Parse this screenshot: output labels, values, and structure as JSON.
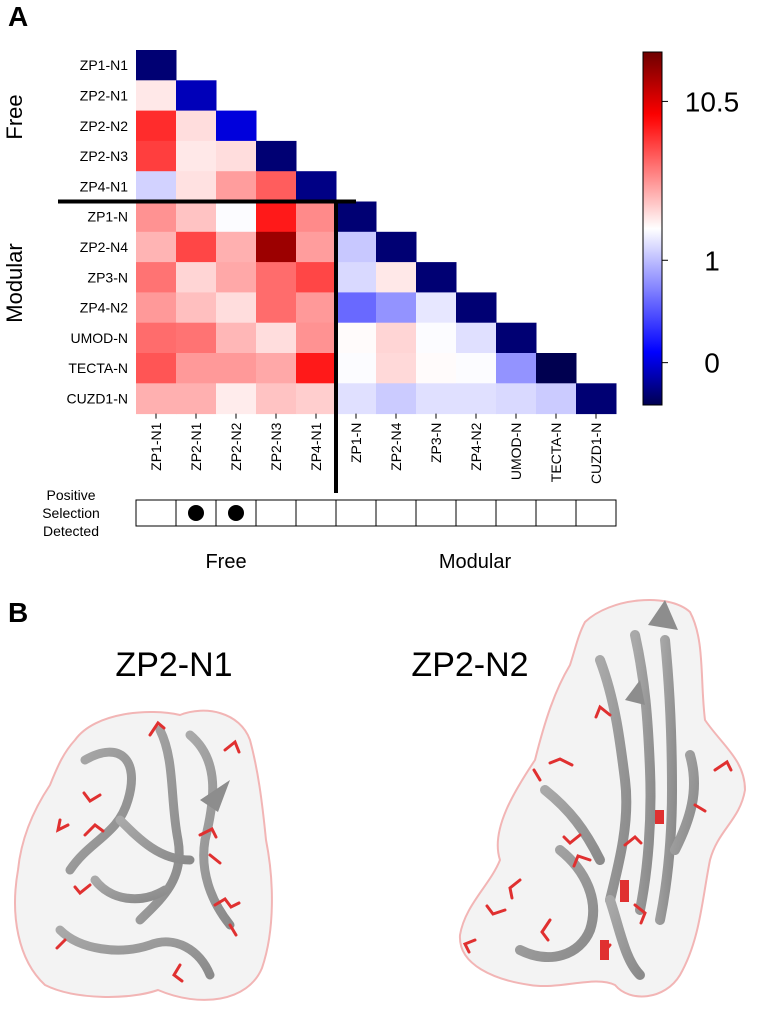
{
  "panels": {
    "a_label": "A",
    "b_label": "B"
  },
  "chart_data": {
    "type": "heatmap",
    "lower_triangle": true,
    "rows": [
      "ZP1-N1",
      "ZP2-N1",
      "ZP2-N2",
      "ZP2-N3",
      "ZP4-N1",
      "ZP1-N",
      "ZP2-N4",
      "ZP3-N",
      "ZP4-N2",
      "UMOD-N",
      "TECTA-N",
      "CUZD1-N"
    ],
    "columns": [
      "ZP1-N1",
      "ZP2-N1",
      "ZP2-N2",
      "ZP2-N3",
      "ZP4-N1",
      "ZP1-N",
      "ZP2-N4",
      "ZP3-N",
      "ZP4-N2",
      "UMOD-N",
      "TECTA-N",
      "CUZD1-N"
    ],
    "values": [
      [
        -0.6
      ],
      [
        3.5,
        -0.2
      ],
      [
        8.5,
        3.8,
        0.0
      ],
      [
        8.0,
        3.5,
        3.8,
        -0.6
      ],
      [
        1.6,
        3.7,
        5.5,
        7.2,
        -0.5
      ],
      [
        5.8,
        4.5,
        2.8,
        9.0,
        6.0,
        -0.6
      ],
      [
        4.9,
        7.8,
        5.0,
        11.5,
        5.5,
        1.3,
        -0.6
      ],
      [
        6.6,
        4.0,
        5.2,
        6.8,
        7.8,
        1.8,
        3.5,
        -0.6
      ],
      [
        5.6,
        4.6,
        3.8,
        6.8,
        5.6,
        0.6,
        0.8,
        2.2,
        -0.6
      ],
      [
        6.8,
        6.6,
        4.8,
        3.8,
        5.8,
        3.0,
        4.0,
        2.8,
        2.0,
        -0.6
      ],
      [
        7.4,
        5.6,
        5.6,
        5.2,
        9.0,
        2.8,
        3.9,
        3.0,
        2.8,
        0.8,
        -0.8
      ],
      [
        5.0,
        5.0,
        3.4,
        4.5,
        4.2,
        2.0,
        1.4,
        2.0,
        2.0,
        1.8,
        1.4,
        -0.6
      ]
    ],
    "colorbar": {
      "ticks": [
        0,
        1,
        10.5
      ],
      "tick_labels": [
        "0",
        "1",
        "10.5"
      ],
      "range": [
        -0.8,
        12.2
      ]
    },
    "group_labels": {
      "free": "Free",
      "modular": "Modular"
    },
    "free_count": 5,
    "positive_selection": {
      "label_lines": [
        "Positive",
        "Selection",
        "Detected"
      ],
      "detected": [
        false,
        true,
        true,
        false,
        false,
        false,
        false,
        false,
        false,
        false,
        false,
        false
      ]
    }
  },
  "structures": [
    {
      "title": "ZP2-N1"
    },
    {
      "title": "ZP2-N2"
    }
  ]
}
